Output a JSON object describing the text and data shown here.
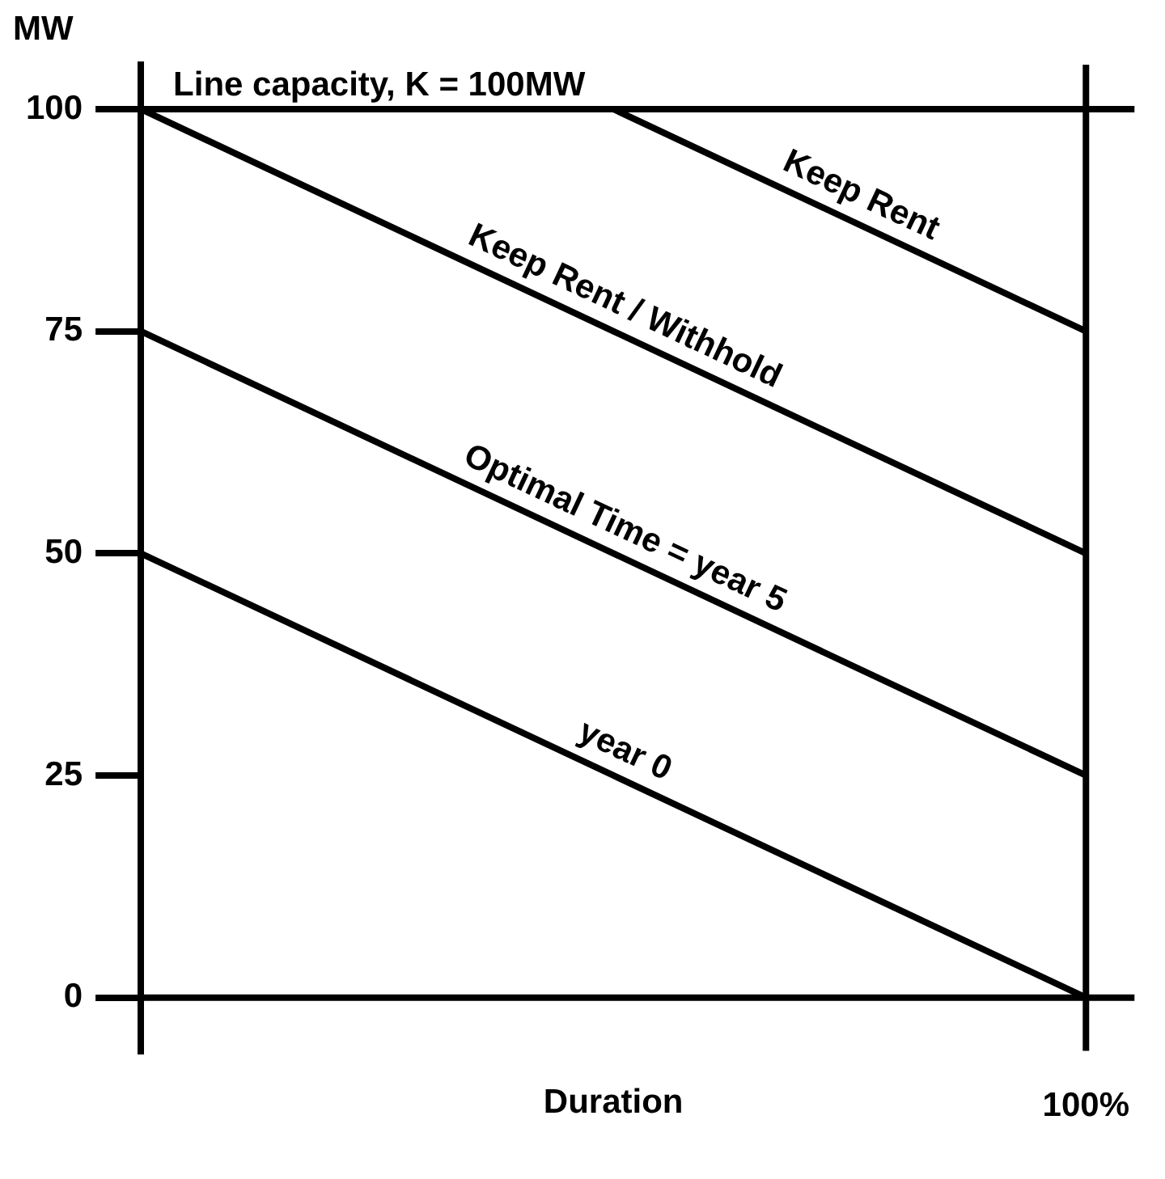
{
  "chart_data": {
    "type": "line",
    "xlabel": "Duration",
    "ylabel": "MW",
    "categories": [
      null,
      null,
      "100%"
    ],
    "ylim": [
      -6,
      105
    ],
    "yticks": [
      0,
      25,
      50,
      75,
      100
    ],
    "legend": false,
    "marker": "none",
    "line_style": "solid",
    "series": [
      {
        "name": "Keep Rent",
        "color": "#000000",
        "values": [
          null,
          100,
          75
        ]
      },
      {
        "name": "Keep Rent / Withhold",
        "color": "#000000",
        "values": [
          100,
          75,
          50
        ]
      },
      {
        "name": "Optimal Time = year 5",
        "color": "#000000",
        "values": [
          75,
          50,
          25
        ]
      },
      {
        "name": "year 0",
        "color": "#000000",
        "values": [
          50,
          25,
          0
        ]
      }
    ],
    "ref_lines": [
      {
        "axis": "y",
        "value": 100,
        "label": "Line capacity, K = 100MW",
        "color": "#000000"
      },
      {
        "axis": "y",
        "value": 0,
        "color": "#000000"
      },
      {
        "axis": "x",
        "value": "100%",
        "color": "#000000"
      }
    ]
  }
}
